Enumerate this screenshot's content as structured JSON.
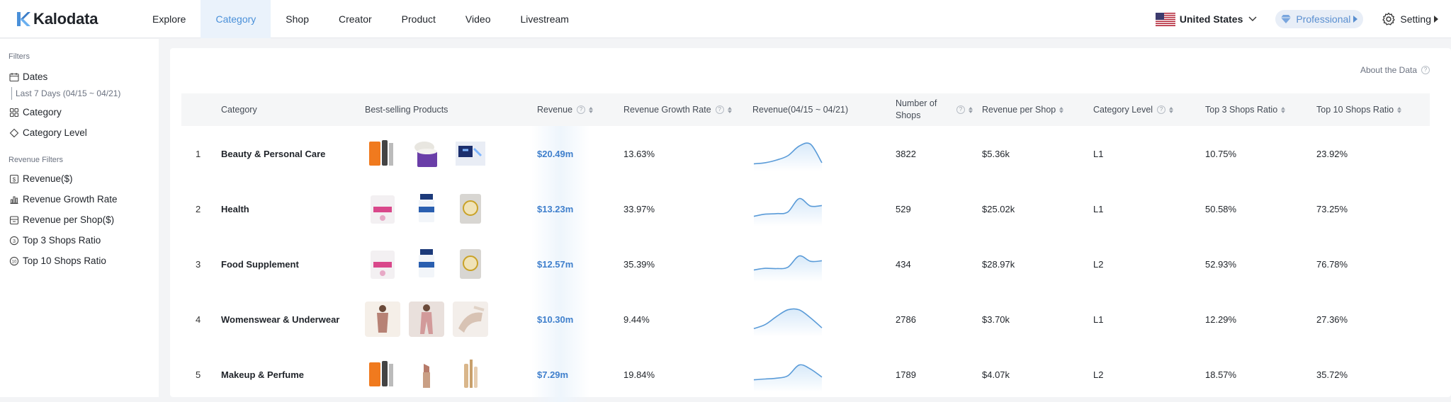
{
  "brand": {
    "name": "Kalodata",
    "accent": "#4a90d9"
  },
  "nav": {
    "items": [
      {
        "label": "Explore",
        "active": false
      },
      {
        "label": "Category",
        "active": true
      },
      {
        "label": "Shop",
        "active": false
      },
      {
        "label": "Creator",
        "active": false
      },
      {
        "label": "Product",
        "active": false
      },
      {
        "label": "Video",
        "active": false
      },
      {
        "label": "Livestream",
        "active": false
      }
    ],
    "country": "United States",
    "plan": "Professional",
    "setting": "Setting"
  },
  "sidebar": {
    "filters_title": "Filters",
    "dates_label": "Dates",
    "dates_value": "Last 7 Days (04/15 ~ 04/21)",
    "category_label": "Category",
    "category_level_label": "Category Level",
    "revenue_filters_title": "Revenue Filters",
    "revenue_items": [
      {
        "label": "Revenue($)",
        "icon": "dollar-icon"
      },
      {
        "label": "Revenue Growth Rate",
        "icon": "bar-chart-icon"
      },
      {
        "label": "Revenue per Shop($)",
        "icon": "shop-icon"
      },
      {
        "label": "Top 3 Shops Ratio",
        "icon": "three-circle-icon"
      },
      {
        "label": "Top 10 Shops Ratio",
        "icon": "ten-circle-icon"
      }
    ]
  },
  "main": {
    "about_label": "About the Data",
    "columns": {
      "category": "Category",
      "best_selling": "Best-selling Products",
      "revenue": "Revenue",
      "growth": "Revenue Growth Rate",
      "revenue_trend": "Revenue(04/15 ~ 04/21)",
      "shops_line1": "Number of",
      "shops_line2": "Shops",
      "rev_per_shop": "Revenue per Shop",
      "level": "Category Level",
      "top3": "Top 3 Shops Ratio",
      "top10": "Top 10 Shops Ratio"
    },
    "rows": [
      {
        "rank": "1",
        "category": "Beauty & Personal Care",
        "revenue": "$20.49m",
        "growth": "13.63%",
        "shops": "3822",
        "rev_per_shop": "$5.36k",
        "level": "L1",
        "top3": "10.75%",
        "top10": "23.92%",
        "trend": [
          0.12,
          0.16,
          0.26,
          0.42,
          0.78,
          0.85,
          0.16
        ]
      },
      {
        "rank": "2",
        "category": "Health",
        "revenue": "$13.23m",
        "growth": "33.97%",
        "shops": "529",
        "rev_per_shop": "$25.02k",
        "level": "L1",
        "top3": "50.58%",
        "top10": "73.25%",
        "trend": [
          0.22,
          0.3,
          0.32,
          0.38,
          0.88,
          0.6,
          0.62
        ]
      },
      {
        "rank": "3",
        "category": "Food Supplement",
        "revenue": "$12.57m",
        "growth": "35.39%",
        "shops": "434",
        "rev_per_shop": "$28.97k",
        "level": "L2",
        "top3": "52.93%",
        "top10": "76.78%",
        "trend": [
          0.28,
          0.34,
          0.33,
          0.38,
          0.8,
          0.6,
          0.62
        ]
      },
      {
        "rank": "4",
        "category": "Womenswear & Underwear",
        "revenue": "$10.30m",
        "growth": "9.44%",
        "shops": "2786",
        "rev_per_shop": "$3.70k",
        "level": "L1",
        "top3": "12.29%",
        "top10": "27.36%",
        "trend": [
          0.15,
          0.3,
          0.6,
          0.85,
          0.85,
          0.55,
          0.18
        ]
      },
      {
        "rank": "5",
        "category": "Makeup & Perfume",
        "revenue": "$7.29m",
        "growth": "19.84%",
        "shops": "1789",
        "rev_per_shop": "$4.07k",
        "level": "L2",
        "top3": "18.57%",
        "top10": "35.72%",
        "trend": [
          0.3,
          0.33,
          0.36,
          0.45,
          0.85,
          0.7,
          0.4
        ]
      }
    ]
  }
}
